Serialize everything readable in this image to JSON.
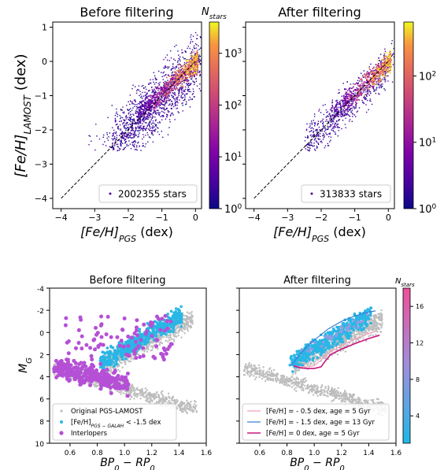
{
  "chart_data": [
    {
      "id": "top_left",
      "type": "heatmap",
      "title": "Before filtering",
      "xlabel": "[Fe/H]",
      "xlabel_sub": "PGS",
      "xlabel_unit": " (dex)",
      "ylabel": "[Fe/H]",
      "ylabel_sub": "LAMOST",
      "ylabel_unit": " (dex)",
      "xlim": [
        -4.25,
        0.18
      ],
      "ylim": [
        -4.3,
        1.15
      ],
      "xticks": [
        -4,
        -3,
        -2,
        -1,
        0
      ],
      "xtick_labels": [
        "−4",
        "−3",
        "−2",
        "−1",
        "0"
      ],
      "yticks": [
        1,
        0,
        -1,
        -2,
        -3,
        -4
      ],
      "ytick_labels": [
        "1",
        "0",
        "−1",
        "−2",
        "−3",
        "−4"
      ],
      "legend": {
        "text": "2002355 stars",
        "loc": "lower right"
      },
      "one_to_one_line": true,
      "colorbar": {
        "label": "N",
        "label_sub": "stars",
        "scale": "log",
        "range": [
          1,
          4000
        ],
        "ticks": [
          1,
          10,
          100,
          1000
        ],
        "tick_labels": [
          "10",
          "10",
          "10",
          "10"
        ],
        "tick_exponents": [
          "0",
          "1",
          "2",
          "3"
        ]
      }
    },
    {
      "id": "top_right",
      "type": "heatmap",
      "title": "After filtering",
      "xlabel": "[Fe/H]",
      "xlabel_sub": "PGS",
      "xlabel_unit": " (dex)",
      "xlim": [
        -4.25,
        0.18
      ],
      "ylim": [
        -4.3,
        1.15
      ],
      "xticks": [
        -4,
        -3,
        -2,
        -1,
        0
      ],
      "xtick_labels": [
        "−4",
        "−3",
        "−2",
        "−1",
        "0"
      ],
      "legend": {
        "text": "313833 stars",
        "loc": "lower right"
      },
      "one_to_one_line": true,
      "colorbar": {
        "scale": "log",
        "range": [
          1,
          650
        ],
        "ticks": [
          1,
          10,
          100
        ],
        "tick_labels": [
          "10",
          "10",
          "10"
        ],
        "tick_exponents": [
          "0",
          "1",
          "2"
        ]
      }
    },
    {
      "id": "bottom_left",
      "type": "scatter",
      "title": "Before filtering",
      "xlabel": "BP",
      "xlabel_sub1": "0",
      "xlabel_mid": " − RP",
      "xlabel_sub2": "0",
      "ylabel": "M",
      "ylabel_sub": "G",
      "xlim": [
        0.45,
        1.6
      ],
      "ylim": [
        10,
        -4
      ],
      "y_inverted": true,
      "xticks": [
        0.6,
        0.8,
        1.0,
        1.2,
        1.4,
        1.6
      ],
      "xtick_labels": [
        "0.6",
        "0.8",
        "1.0",
        "1.2",
        "1.4",
        "1.6"
      ],
      "yticks": [
        -4,
        -2,
        0,
        2,
        4,
        6,
        8,
        10
      ],
      "ytick_labels": [
        "-4",
        "-2",
        "0",
        "2",
        "4",
        "6",
        "8",
        "10"
      ],
      "legend": {
        "loc": "lower left",
        "entries": [
          {
            "label": "Original PGS-LAMOST",
            "color": "#bdbdbd"
          },
          {
            "label_pre": "[Fe/H]",
            "label_sub": "PGS − GALAH",
            "label_post": " < -1.5 dex",
            "color": "#29b6e6"
          },
          {
            "label": "Interlopers",
            "color": "#b550d6"
          }
        ]
      }
    },
    {
      "id": "bottom_right",
      "type": "scatter",
      "title": "After filtering",
      "xlabel": "BP",
      "xlabel_sub1": "0",
      "xlabel_mid": " − RP",
      "xlabel_sub2": "0",
      "xlim": [
        0.45,
        1.6
      ],
      "ylim": [
        10,
        -4
      ],
      "y_inverted": true,
      "xticks": [
        0.6,
        0.8,
        1.0,
        1.2,
        1.4,
        1.6
      ],
      "xtick_labels": [
        "0.6",
        "0.8",
        "1.0",
        "1.2",
        "1.4",
        "1.6"
      ],
      "colorbar": {
        "label": "N",
        "label_sub": "stars",
        "range": [
          1,
          18
        ],
        "ticks": [
          4,
          8,
          12,
          16
        ],
        "tick_labels": [
          "4",
          "8",
          "12",
          "16"
        ]
      },
      "isochrones": [
        {
          "label": "[Fe/H] = - 0.5 dex, age = 5 Gyr",
          "color": "#f2a0bc",
          "x": [
            0.85,
            0.9,
            0.95,
            1.0,
            1.05,
            1.1,
            1.2,
            1.3,
            1.4,
            1.45
          ],
          "y": [
            3.0,
            3.1,
            3.1,
            3.0,
            2.5,
            1.9,
            1.2,
            0.6,
            0.1,
            -0.1
          ]
        },
        {
          "label": "[Fe/H] = - 1.5 dex, age = 13 Gyr",
          "color": "#3a7fd5",
          "x": [
            0.83,
            0.88,
            0.95,
            1.02,
            1.1,
            1.2,
            1.3,
            1.4,
            1.45
          ],
          "y": [
            3.0,
            2.2,
            1.2,
            0.5,
            -0.3,
            -1.0,
            -1.5,
            -1.85,
            -1.95
          ]
        },
        {
          "label": "[Fe/H] =  0 dex, age = 5 Gyr",
          "color": "#c8187e",
          "x": [
            0.85,
            0.9,
            0.95,
            1.0,
            1.05,
            1.08,
            1.12,
            1.2,
            1.3,
            1.4,
            1.48
          ],
          "y": [
            3.0,
            3.2,
            3.25,
            3.25,
            3.1,
            2.6,
            2.0,
            1.5,
            1.0,
            0.55,
            0.25
          ]
        }
      ]
    }
  ]
}
